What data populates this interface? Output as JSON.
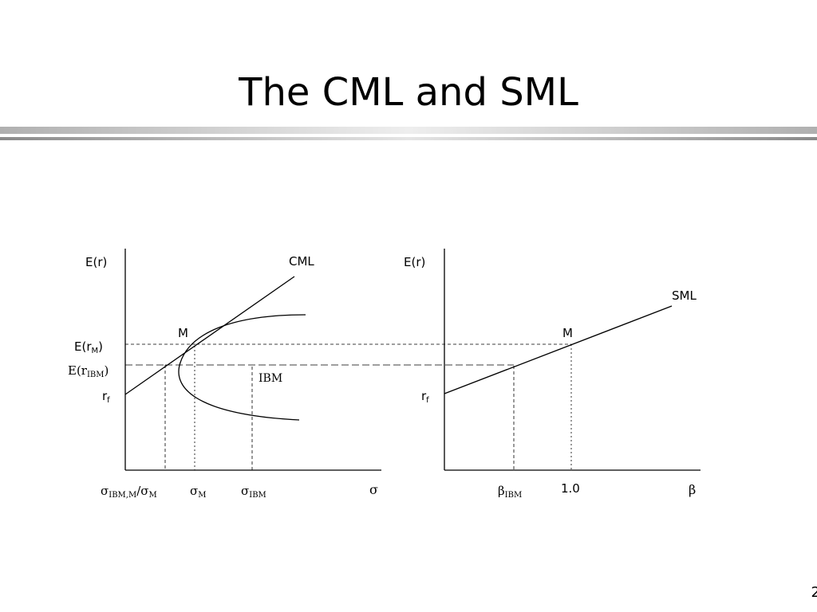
{
  "slide": {
    "title": "The CML and SML",
    "page_number": "2"
  },
  "cml_panel": {
    "y_axis_label": "E(r)",
    "curve_label": "CML",
    "market_point_label": "M",
    "expected_return_market": {
      "base": "E(r",
      "sub": "M",
      "close": ")"
    },
    "expected_return_ibm": {
      "base": "E(r",
      "sub": "IBM",
      "close": ")"
    },
    "risk_free": {
      "base": "r",
      "sub": "f"
    },
    "asset_label": "IBM",
    "x_ticks": [
      {
        "sym": "σ",
        "sub": "IBM,M",
        "mid": "/σ",
        "sub2": "M"
      },
      {
        "sym": "σ",
        "sub": "M"
      },
      {
        "sym": "σ",
        "sub": "IBM"
      }
    ],
    "x_axis_symbol": "σ"
  },
  "sml_panel": {
    "y_axis_label": "E(r)",
    "line_label": "SML",
    "market_point_label": "M",
    "risk_free": {
      "base": "r",
      "sub": "f"
    },
    "x_ticks": [
      {
        "sym": "β",
        "sub": "IBM"
      },
      {
        "text": "1.0"
      }
    ],
    "x_axis_symbol": "β"
  }
}
